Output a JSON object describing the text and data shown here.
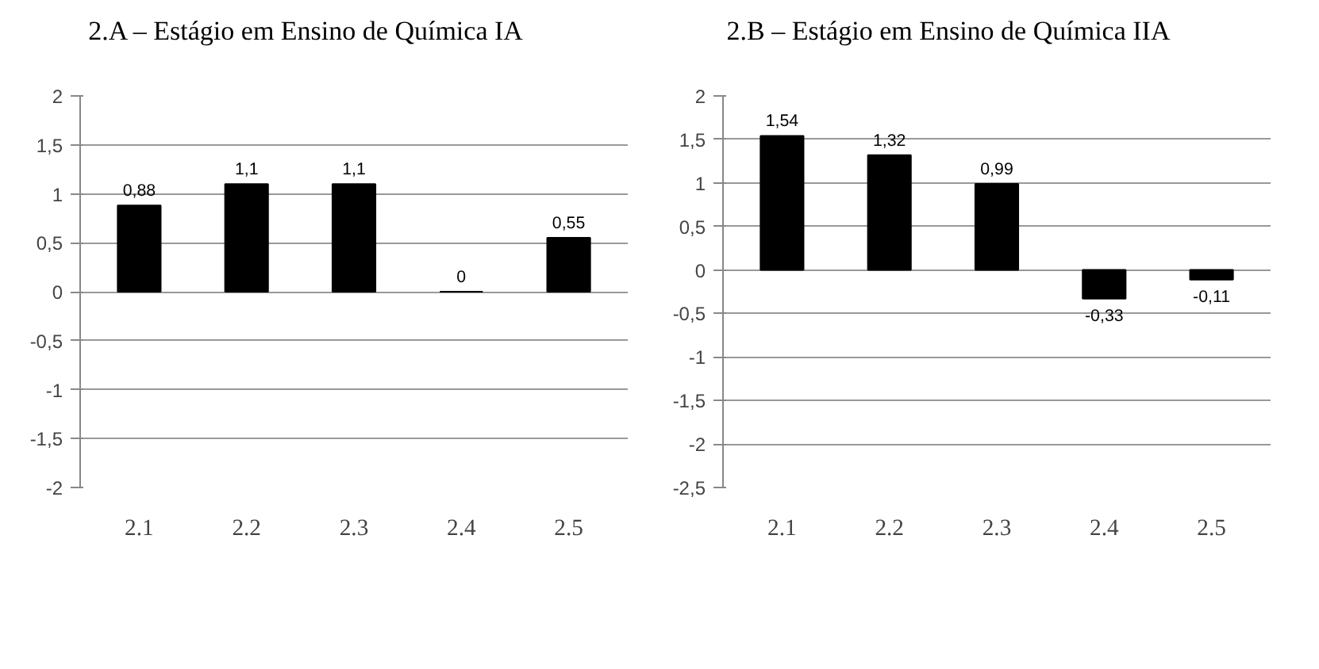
{
  "chart_data": [
    {
      "type": "bar",
      "title": "2.A – Estágio em Ensino de Química IA",
      "categories": [
        "2.1",
        "2.2",
        "2.3",
        "2.4",
        "2.5"
      ],
      "values": [
        0.88,
        1.1,
        1.1,
        0,
        0.55
      ],
      "value_labels": [
        "0,88",
        "1,1",
        "1,1",
        "0",
        "0,55"
      ],
      "color": "#000000",
      "ylim": [
        -2,
        2
      ],
      "yticks": [
        {
          "value": -2,
          "label": "-2"
        },
        {
          "value": -1.5,
          "label": "-1,5"
        },
        {
          "value": -1,
          "label": "-1"
        },
        {
          "value": -0.5,
          "label": "-0,5"
        },
        {
          "value": 0,
          "label": "0"
        },
        {
          "value": 0.5,
          "label": "0,5"
        },
        {
          "value": 1,
          "label": "1"
        },
        {
          "value": 1.5,
          "label": "1,5"
        },
        {
          "value": 2,
          "label": "2"
        }
      ],
      "grid": "y"
    },
    {
      "type": "bar",
      "title": "2.B – Estágio em Ensino de Química IIA",
      "categories": [
        "2.1",
        "2.2",
        "2.3",
        "2.4",
        "2.5"
      ],
      "values": [
        1.54,
        1.32,
        0.99,
        -0.33,
        -0.11
      ],
      "value_labels": [
        "1,54",
        "1,32",
        "0,99",
        "-0,33",
        "-0,11"
      ],
      "color": "#000000",
      "ylim": [
        -2.5,
        2
      ],
      "yticks": [
        {
          "value": -2.5,
          "label": "-2,5"
        },
        {
          "value": -2,
          "label": "-2"
        },
        {
          "value": -1.5,
          "label": "-1,5"
        },
        {
          "value": -1,
          "label": "-1"
        },
        {
          "value": -0.5,
          "label": "-0,5"
        },
        {
          "value": 0,
          "label": "0"
        },
        {
          "value": 0.5,
          "label": "0,5"
        },
        {
          "value": 1,
          "label": "1"
        },
        {
          "value": 1.5,
          "label": "1,5"
        },
        {
          "value": 2,
          "label": "2"
        }
      ],
      "grid": "y"
    }
  ]
}
